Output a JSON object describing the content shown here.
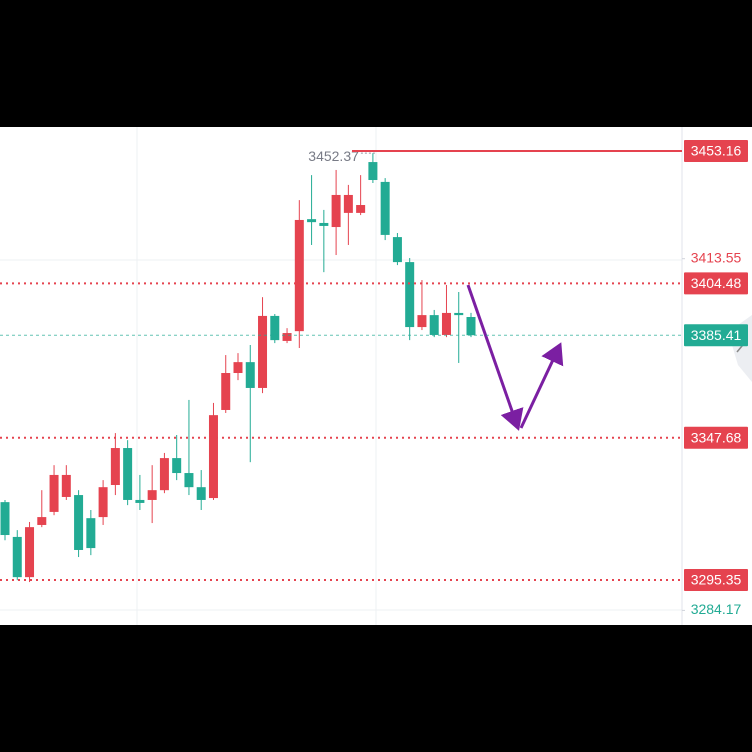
{
  "chart_data": {
    "type": "candlestick",
    "up_color": "#e5434f",
    "down_color": "#22ab94",
    "ylim": [
      3278.8,
      3462.0
    ],
    "high_label": 3452.37,
    "open": [
      3324.0,
      3311.2,
      3296.4,
      3315.6,
      3320.4,
      3325.9,
      3326.6,
      3318.1,
      3318.5,
      3330.3,
      3343.9,
      3324.8,
      3324.8,
      3328.4,
      3340.2,
      3334.7,
      3329.5,
      3325.5,
      3357.9,
      3371.5,
      3375.5,
      3366.0,
      3392.5,
      3383.3,
      3386.9,
      3428.1,
      3426.7,
      3425.2,
      3430.4,
      3430.4,
      3449.1,
      3441.8,
      3421.5,
      3412.3,
      3388.4,
      3392.8,
      3385.5,
      3393.6,
      3392.1
    ],
    "high": [
      3324.8,
      3313.7,
      3316.7,
      3328.4,
      3337.6,
      3337.6,
      3328.4,
      3321.1,
      3332.1,
      3349.4,
      3346.8,
      3334.0,
      3337.6,
      3342.1,
      3348.7,
      3361.6,
      3335.8,
      3360.5,
      3378.1,
      3378.8,
      3381.8,
      3399.4,
      3393.2,
      3388.0,
      3435.1,
      3444.3,
      3431.5,
      3446.2,
      3440.7,
      3444.3,
      3452.37,
      3443.2,
      3423.0,
      3413.8,
      3405.7,
      3394.7,
      3403.9,
      3401.3,
      3393.6
    ],
    "low": [
      3310.0,
      3295.3,
      3294.6,
      3314.8,
      3319.2,
      3324.8,
      3303.8,
      3304.5,
      3315.6,
      3326.6,
      3322.9,
      3321.1,
      3316.3,
      3327.3,
      3332.1,
      3326.6,
      3321.1,
      3324.8,
      3356.8,
      3368.9,
      3338.7,
      3364.1,
      3382.5,
      3382.5,
      3380.7,
      3418.6,
      3408.6,
      3414.9,
      3418.6,
      3429.6,
      3441.4,
      3420.4,
      3411.2,
      3383.6,
      3387.3,
      3384.7,
      3384.7,
      3375.2,
      3384.7
    ],
    "close": [
      3311.9,
      3296.4,
      3314.8,
      3318.5,
      3334.0,
      3334.0,
      3306.4,
      3307.1,
      3329.5,
      3343.9,
      3324.8,
      3323.7,
      3328.4,
      3340.2,
      3334.7,
      3329.5,
      3324.8,
      3356.0,
      3371.5,
      3375.5,
      3366.0,
      3392.5,
      3383.6,
      3386.2,
      3427.8,
      3427.0,
      3425.6,
      3437.0,
      3437.0,
      3433.3,
      3442.5,
      3422.3,
      3412.3,
      3388.4,
      3392.8,
      3385.5,
      3393.6,
      3392.8,
      3385.41
    ],
    "price_marks": [
      {
        "value": 3453.16,
        "color": "#e5434f",
        "line": "solid",
        "boxed": true
      },
      {
        "value": 3413.55,
        "color": "#e5434f",
        "line": "none",
        "boxed": false
      },
      {
        "value": 3404.48,
        "color": "#e5434f",
        "line": "dotted",
        "boxed": true
      },
      {
        "value": 3385.41,
        "color": "#22ab94",
        "line": "dashed",
        "boxed": true
      },
      {
        "value": 3347.68,
        "color": "#e5434f",
        "line": "dotted",
        "boxed": true
      },
      {
        "value": 3295.35,
        "color": "#e5434f",
        "line": "dotted",
        "boxed": true
      },
      {
        "value": 3284.17,
        "color": "#22ab94",
        "line": "none",
        "boxed": false
      }
    ]
  }
}
